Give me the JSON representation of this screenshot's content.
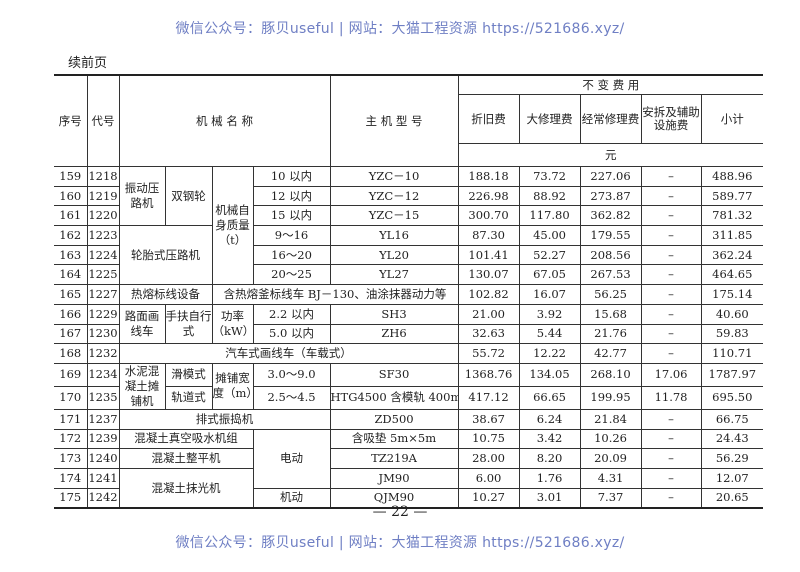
{
  "watermark": "微信公众号：豚贝useful | 网站：大猫工程资源 https://521686.xyz/",
  "continued": "续前页",
  "page_number": "— 22 —",
  "header": {
    "seq": "序号",
    "code": "代号",
    "name": "机 械 名 称",
    "model": "主 机 型 号",
    "fixed_costs": "不 变 费 用",
    "cols": [
      "折旧费",
      "大修理费",
      "经常修理费",
      "安拆及辅助设施费",
      "小计"
    ],
    "unit": "元"
  },
  "rows": [
    {
      "seq": "159",
      "code": "1218",
      "a": "振动压路机",
      "b": "双钢轮",
      "c": "机械自身质量（t）",
      "d": "10 以内",
      "model": "YZC－10",
      "v": [
        "188.18",
        "73.72",
        "227.06",
        "–",
        "488.96"
      ]
    },
    {
      "seq": "160",
      "code": "1219",
      "d": "12 以内",
      "model": "YZC－12",
      "v": [
        "226.98",
        "88.92",
        "273.87",
        "–",
        "589.77"
      ]
    },
    {
      "seq": "161",
      "code": "1220",
      "d": "15 以内",
      "model": "YZC－15",
      "v": [
        "300.70",
        "117.80",
        "362.82",
        "–",
        "781.32"
      ]
    },
    {
      "seq": "162",
      "code": "1223",
      "a": "轮胎式压路机",
      "d": "9～16",
      "model": "YL16",
      "v": [
        "87.30",
        "45.00",
        "179.55",
        "–",
        "311.85"
      ]
    },
    {
      "seq": "163",
      "code": "1224",
      "d": "16～20",
      "model": "YL20",
      "v": [
        "101.41",
        "52.27",
        "208.56",
        "–",
        "362.24"
      ]
    },
    {
      "seq": "164",
      "code": "1225",
      "d": "20～25",
      "model": "YL27",
      "v": [
        "130.07",
        "67.05",
        "267.53",
        "–",
        "464.65"
      ]
    },
    {
      "seq": "165",
      "code": "1227",
      "a": "热熔标线设备",
      "c": "含热熔釜标线车 BJ－130、油涂抹器动力等",
      "v": [
        "102.82",
        "16.07",
        "56.25",
        "–",
        "175.14"
      ]
    },
    {
      "seq": "166",
      "code": "1229",
      "a": "路面画线车",
      "b": "手扶自行式",
      "c": "功率（kW）",
      "d": "2.2 以内",
      "model": "SH3",
      "v": [
        "21.00",
        "3.92",
        "15.68",
        "–",
        "40.60"
      ]
    },
    {
      "seq": "167",
      "code": "1230",
      "d": "5.0 以内",
      "model": "ZH6",
      "v": [
        "32.63",
        "5.44",
        "21.76",
        "–",
        "59.83"
      ]
    },
    {
      "seq": "168",
      "code": "1232",
      "a": "汽车式画线车（车载式）",
      "v": [
        "55.72",
        "12.22",
        "42.77",
        "–",
        "110.71"
      ]
    },
    {
      "seq": "169",
      "code": "1234",
      "a": "水泥混凝土摊铺机",
      "b": "滑模式",
      "c": "摊铺宽度（m）",
      "d": "3.0～9.0",
      "model": "SF30",
      "v": [
        "1368.76",
        "134.05",
        "268.10",
        "17.06",
        "1787.97"
      ]
    },
    {
      "seq": "170",
      "code": "1235",
      "b": "轨道式",
      "d": "2.5～4.5",
      "model": "HTG4500 含模轨 400m",
      "v": [
        "417.12",
        "66.65",
        "199.95",
        "11.78",
        "695.50"
      ]
    },
    {
      "seq": "171",
      "code": "1237",
      "a": "排式振捣机",
      "model": "ZD500",
      "v": [
        "38.67",
        "6.24",
        "21.84",
        "–",
        "66.75"
      ]
    },
    {
      "seq": "172",
      "code": "1239",
      "a": "混凝土真空吸水机组",
      "d": "电动",
      "model": "含吸垫 5m×5m",
      "v": [
        "10.75",
        "3.42",
        "10.26",
        "–",
        "24.43"
      ]
    },
    {
      "seq": "173",
      "code": "1240",
      "a": "混凝土整平机",
      "model": "TZ219A",
      "v": [
        "28.00",
        "8.20",
        "20.09",
        "–",
        "56.29"
      ]
    },
    {
      "seq": "174",
      "code": "1241",
      "a": "混凝土抹光机",
      "model": "JM90",
      "v": [
        "6.00",
        "1.76",
        "4.31",
        "–",
        "12.07"
      ]
    },
    {
      "seq": "175",
      "code": "1242",
      "d": "机动",
      "model": "QJM90",
      "v": [
        "10.27",
        "3.01",
        "7.37",
        "–",
        "20.65"
      ]
    }
  ]
}
